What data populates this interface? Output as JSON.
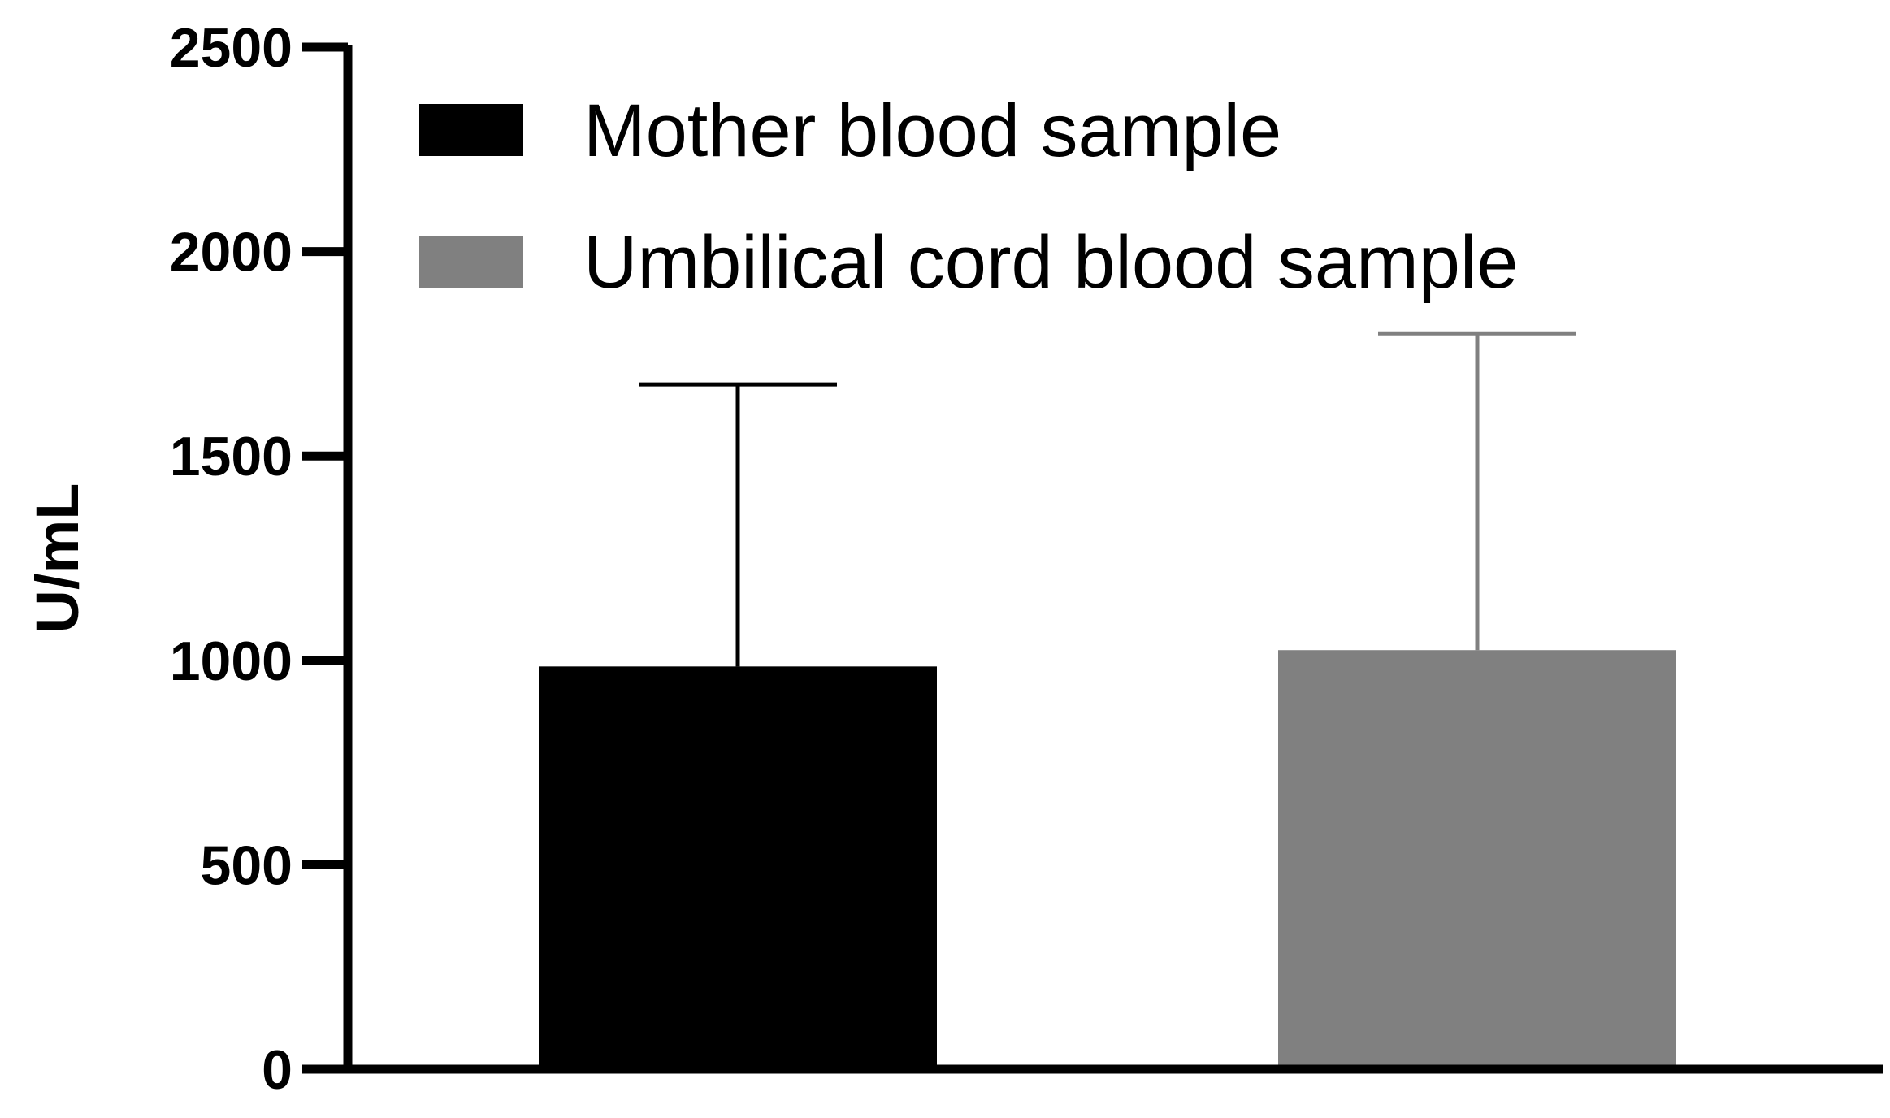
{
  "chart_data": {
    "type": "bar",
    "categories": [
      "Mother blood sample",
      "Umbilical cord blood sample"
    ],
    "values": [
      985,
      1025
    ],
    "error_bars_upper": [
      1675,
      1800
    ],
    "colors": [
      "#000000",
      "#808080"
    ],
    "ylabel": "U/mL",
    "xlabel": "",
    "title": "",
    "ylim": [
      0,
      2500
    ],
    "yticks": [
      0,
      500,
      1000,
      1500,
      2000,
      2500
    ],
    "grid": false,
    "legend": {
      "placement": "top-left",
      "entries": [
        {
          "label": "Mother blood sample",
          "color": "#000000"
        },
        {
          "label": "Umbilical cord blood sample",
          "color": "#808080"
        }
      ]
    }
  }
}
